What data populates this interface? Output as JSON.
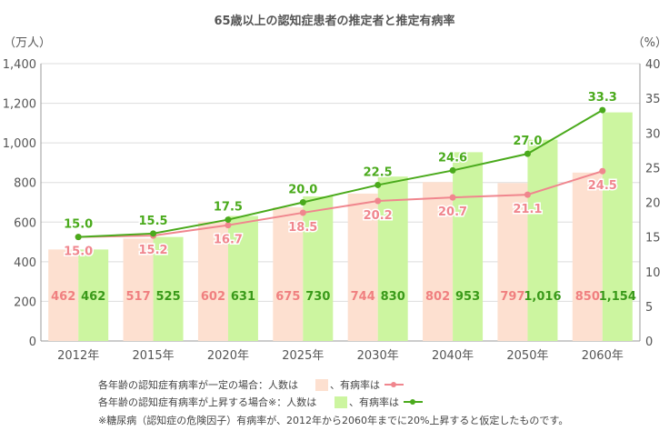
{
  "chart_data": {
    "type": "bar",
    "title": "65歳以上の認知症患者の推定者と推定有病率",
    "left_unit": "（万人）",
    "right_unit": "（%）",
    "categories": [
      "2012年",
      "2015年",
      "2020年",
      "2025年",
      "2030年",
      "2040年",
      "2050年",
      "2060年"
    ],
    "left_ylim": [
      0,
      1400
    ],
    "left_ticks": [
      "0",
      "200",
      "400",
      "600",
      "800",
      "1,000",
      "1,200",
      "1,400"
    ],
    "right_ylim": [
      0,
      40
    ],
    "right_ticks": [
      "0",
      "5",
      "10",
      "15",
      "20",
      "25",
      "30",
      "35",
      "40"
    ],
    "series": [
      {
        "kind": "bar",
        "group": "constant",
        "color": "#fde0d0",
        "label_color": "#f08080",
        "values": [
          462,
          517,
          602,
          675,
          744,
          802,
          797,
          850
        ],
        "labels": [
          "462",
          "517",
          "602",
          "675",
          "744",
          "802",
          "797",
          "850"
        ]
      },
      {
        "kind": "bar",
        "group": "rising",
        "color": "#ccf5a0",
        "label_color": "#3a9a1a",
        "values": [
          462,
          525,
          631,
          730,
          830,
          953,
          1016,
          1154
        ],
        "labels": [
          "462",
          "525",
          "631",
          "730",
          "830",
          "953",
          "1,016",
          "1,154"
        ]
      },
      {
        "kind": "line",
        "group": "constant",
        "color": "#f0868e",
        "values": [
          15.0,
          15.2,
          16.7,
          18.5,
          20.2,
          20.7,
          21.1,
          24.5
        ],
        "labels": [
          "15.0",
          "15.2",
          "16.7",
          "18.5",
          "20.2",
          "20.7",
          "21.1",
          "24.5"
        ]
      },
      {
        "kind": "line",
        "group": "rising",
        "color": "#4aaa1c",
        "values": [
          15.0,
          15.5,
          17.5,
          20.0,
          22.5,
          24.6,
          27.0,
          33.3
        ],
        "labels": [
          "15.0",
          "15.5",
          "17.5",
          "20.0",
          "22.5",
          "24.6",
          "27.0",
          "33.3"
        ]
      }
    ],
    "legend": {
      "line1_prefix": "各年齢の認知症有病率が一定の場合：人数は",
      "line1_mid": "、有病率は",
      "line2_prefix": "各年齢の認知症有病率が上昇する場合※：人数は",
      "line2_mid": "、有病率は",
      "note": "※糖尿病（認知症の危険因子）有病率が、2012年から2060年までに20%上昇すると仮定したものです。"
    },
    "grid": true
  }
}
